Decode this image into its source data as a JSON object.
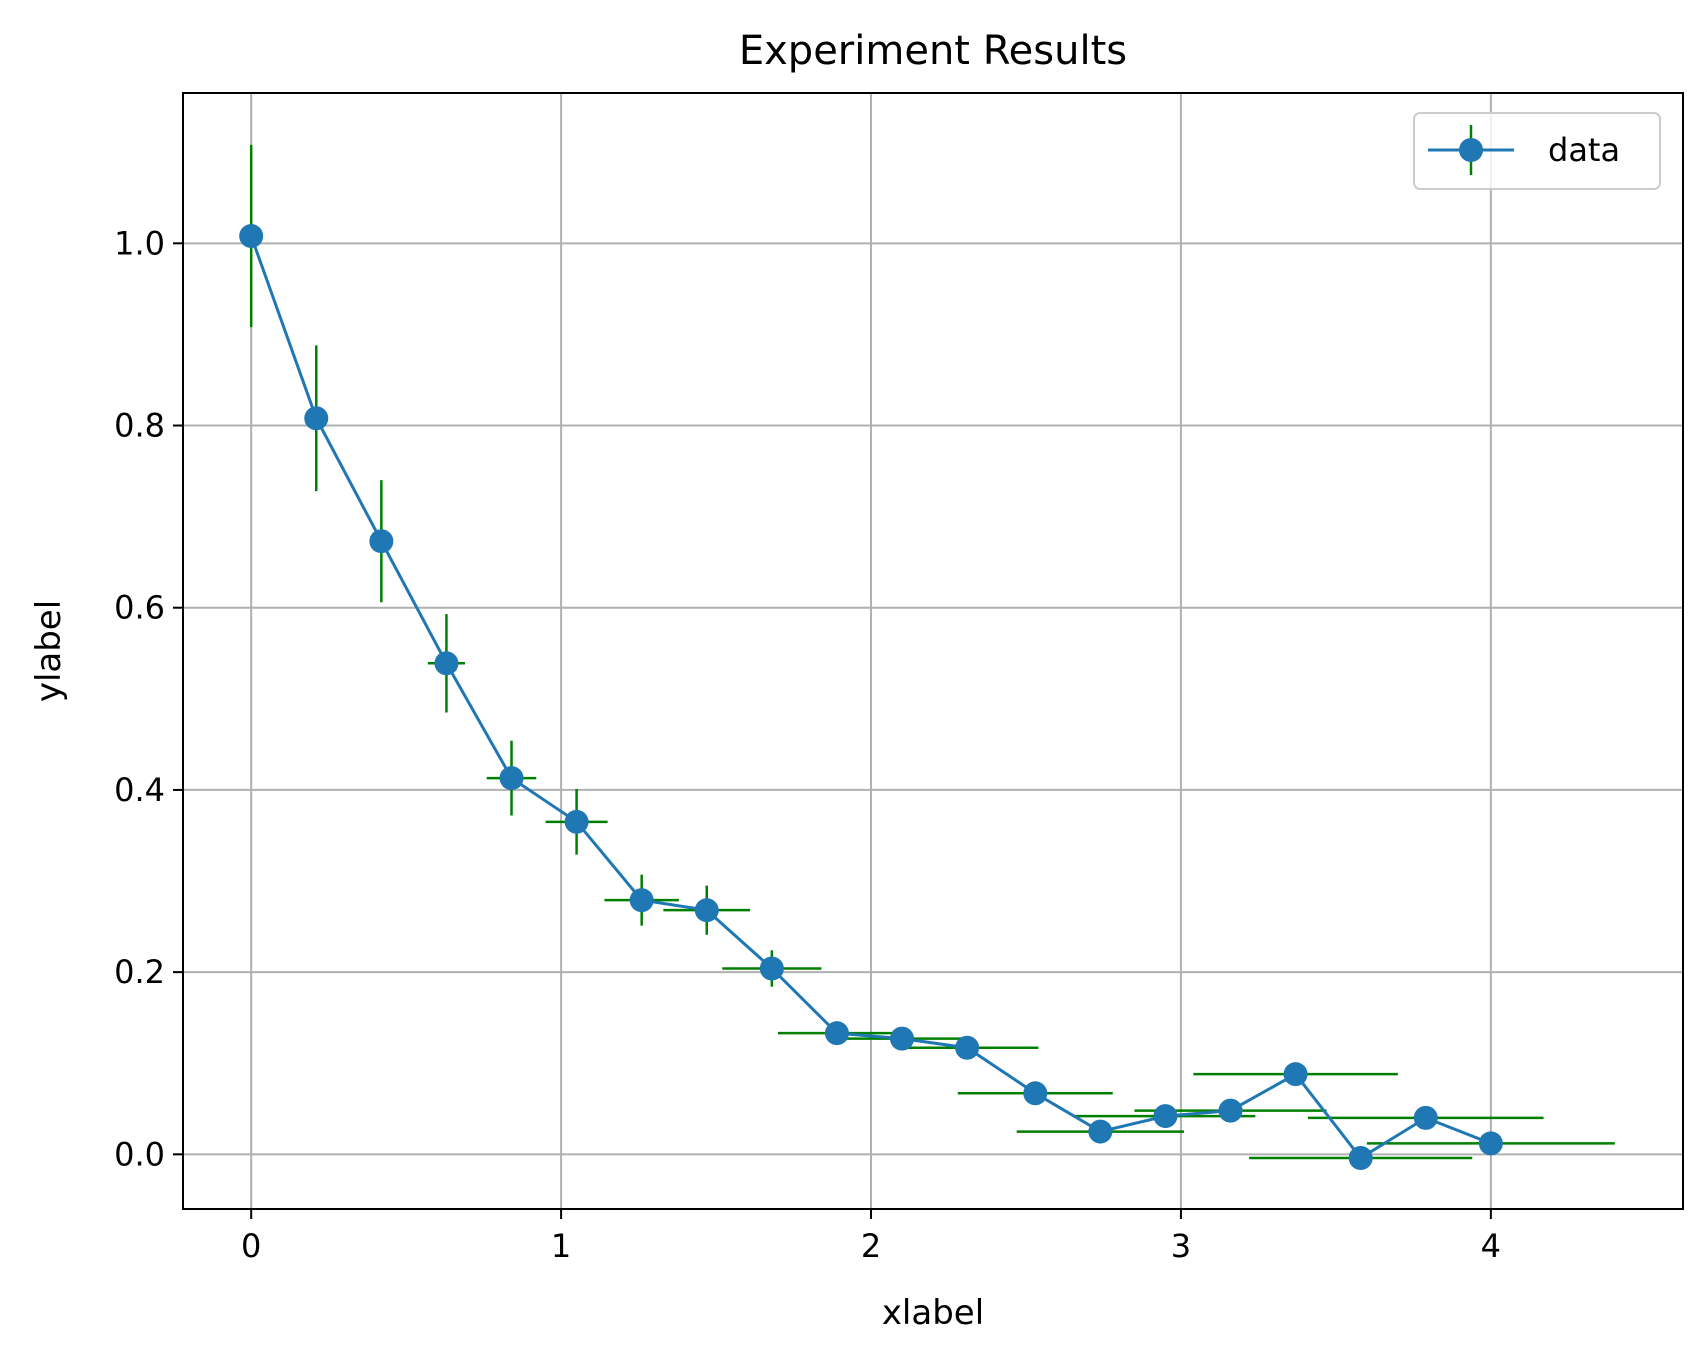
{
  "chart_data": {
    "type": "line",
    "title": "Experiment Results",
    "xlabel": "xlabel",
    "ylabel": "ylabel",
    "xlim": [
      -0.22,
      4.62
    ],
    "ylim": [
      -0.06,
      1.165
    ],
    "xticks": [
      0,
      1,
      2,
      3,
      4
    ],
    "xtick_labels": [
      "0",
      "1",
      "2",
      "3",
      "4"
    ],
    "yticks": [
      0.0,
      0.2,
      0.4,
      0.6,
      0.8,
      1.0
    ],
    "ytick_labels": [
      "0.0",
      "0.2",
      "0.4",
      "0.6",
      "0.8",
      "1.0"
    ],
    "grid": true,
    "legend_position": "top-right",
    "series": [
      {
        "name": "data",
        "color": "#1f77b4",
        "errorbar_color": "#008000",
        "x": [
          0.0,
          0.21,
          0.42,
          0.63,
          0.84,
          1.05,
          1.26,
          1.47,
          1.68,
          1.89,
          2.1,
          2.31,
          2.53,
          2.74,
          2.95,
          3.16,
          3.37,
          3.58,
          3.79,
          4.0
        ],
        "y": [
          1.008,
          0.808,
          0.673,
          0.539,
          0.413,
          0.365,
          0.279,
          0.268,
          0.204,
          0.133,
          0.127,
          0.117,
          0.067,
          0.025,
          0.042,
          0.048,
          0.088,
          -0.004,
          0.04,
          0.012
        ],
        "yerr": [
          0.1,
          0.08,
          0.067,
          0.054,
          0.041,
          0.036,
          0.028,
          0.027,
          0.02,
          0.0,
          0.0,
          0.0,
          0.0,
          0.0,
          0.0,
          0.0,
          0.0,
          0.0,
          0.0,
          0.0
        ],
        "xerr": [
          0.0,
          0.0,
          0.0,
          0.06,
          0.08,
          0.1,
          0.12,
          0.14,
          0.16,
          0.19,
          0.21,
          0.23,
          0.25,
          0.27,
          0.29,
          0.31,
          0.33,
          0.36,
          0.38,
          0.4
        ]
      }
    ]
  }
}
